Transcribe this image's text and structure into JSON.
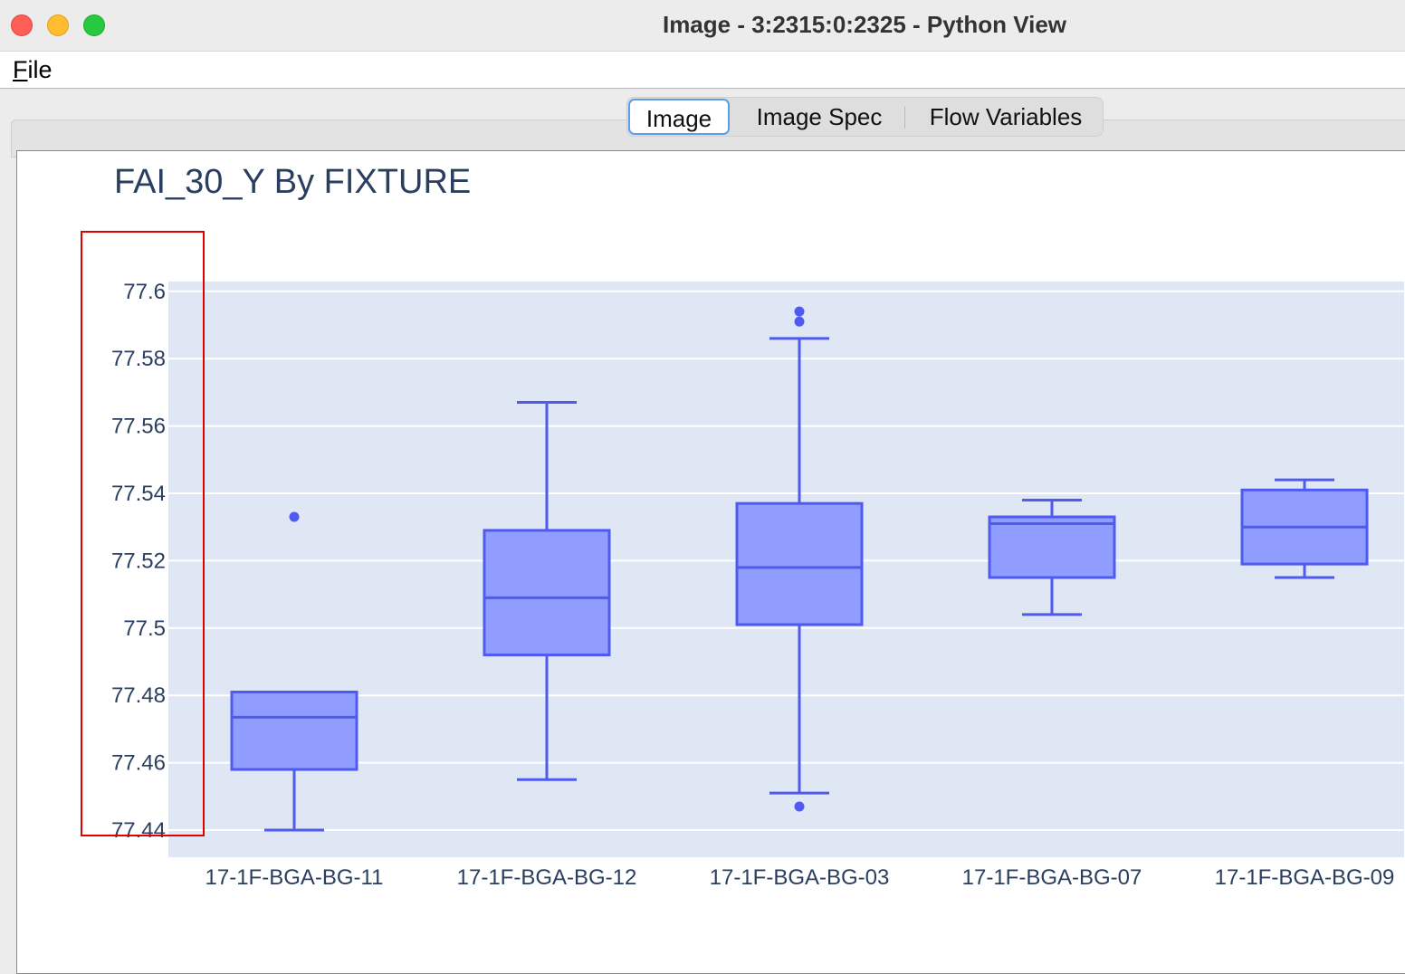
{
  "window": {
    "title": "Image - 3:2315:0:2325 - Python View"
  },
  "menu": {
    "file_label": "File",
    "file_mnemonic": "F",
    "file_rest": "ile"
  },
  "tabs": [
    {
      "label": "Image",
      "active": true
    },
    {
      "label": "Image Spec",
      "active": false
    },
    {
      "label": "Flow Variables",
      "active": false
    }
  ],
  "colors": {
    "plot_bg": "#dfe7f5",
    "box_fill": "#919cff",
    "box_line": "#4f5bf0",
    "grid": "#ffffff",
    "highlight": "#e00000",
    "text": "#2a3f5f"
  },
  "chart_data": {
    "type": "box",
    "title": "FAI_30_Y By FIXTURE",
    "xlabel": "",
    "ylabel": "",
    "ylim": [
      77.4375,
      77.6035
    ],
    "yticks": [
      77.44,
      77.46,
      77.48,
      77.5,
      77.52,
      77.54,
      77.56,
      77.58,
      77.6
    ],
    "ytick_labels": [
      "77.44",
      "77.46",
      "77.48",
      "77.5",
      "77.52",
      "77.54",
      "77.56",
      "77.58",
      "77.6"
    ],
    "grid": true,
    "categories": [
      "17-1F-BGA-BG-11",
      "17-1F-BGA-BG-12",
      "17-1F-BGA-BG-03",
      "17-1F-BGA-BG-07",
      "17-1F-BGA-BG-09"
    ],
    "boxes": [
      {
        "category": "17-1F-BGA-BG-11",
        "lower_whisker": 77.44,
        "q1": 77.458,
        "median": 77.4735,
        "q3": 77.481,
        "upper_whisker": 77.481,
        "outliers": [
          77.533
        ]
      },
      {
        "category": "17-1F-BGA-BG-12",
        "lower_whisker": 77.455,
        "q1": 77.492,
        "median": 77.509,
        "q3": 77.529,
        "upper_whisker": 77.567,
        "outliers": []
      },
      {
        "category": "17-1F-BGA-BG-03",
        "lower_whisker": 77.451,
        "q1": 77.501,
        "median": 77.518,
        "q3": 77.537,
        "upper_whisker": 77.586,
        "outliers": [
          77.447,
          77.591,
          77.594
        ]
      },
      {
        "category": "17-1F-BGA-BG-07",
        "lower_whisker": 77.504,
        "q1": 77.515,
        "median": 77.531,
        "q3": 77.533,
        "upper_whisker": 77.538,
        "outliers": []
      },
      {
        "category": "17-1F-BGA-BG-09",
        "lower_whisker": 77.515,
        "q1": 77.519,
        "median": 77.53,
        "q3": 77.541,
        "upper_whisker": 77.544,
        "outliers": []
      }
    ]
  }
}
